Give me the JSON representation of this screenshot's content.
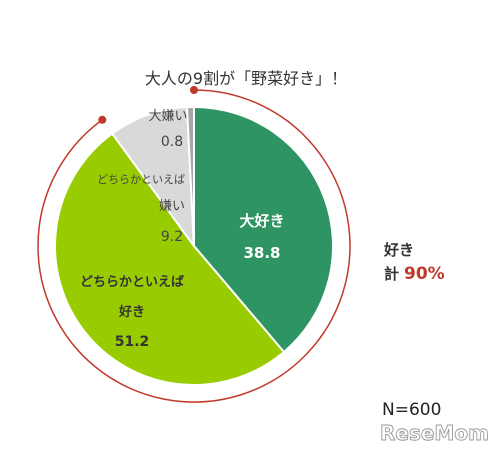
{
  "chart_data": {
    "type": "pie",
    "title": "大人の9割が「野菜好き」！",
    "slices": [
      {
        "label": "大好き",
        "value": 38.8,
        "value_text": "38.8",
        "color": "#2e9464"
      },
      {
        "label_lines": [
          "どちらかといえば",
          "好き"
        ],
        "value": 51.2,
        "value_text": "51.2",
        "color": "#99cc00"
      },
      {
        "label_lines": [
          "どちらかといえば",
          "嫌い"
        ],
        "value": 9.2,
        "value_text": "9.2",
        "color": "#d9d9d9"
      },
      {
        "label": "大嫌い",
        "value": 0.8,
        "value_text": "0.8",
        "color": "#a6a6a6"
      }
    ],
    "annotation": {
      "line1": "好き",
      "line2_prefix": "計",
      "line2_value": "90%",
      "arc_color": "#c0392b"
    },
    "sample_size": "N=600"
  },
  "watermark": "ReseMom"
}
